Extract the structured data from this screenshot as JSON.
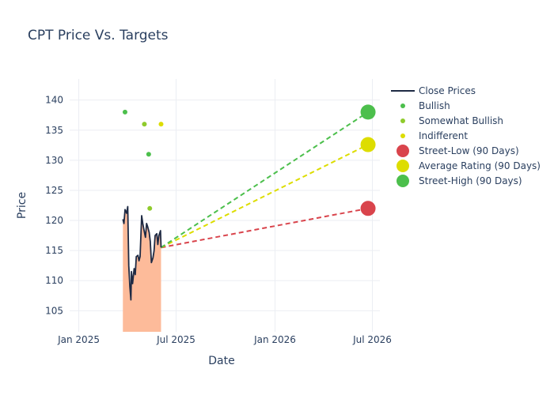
{
  "chart_data": {
    "type": "line",
    "title": "CPT Price Vs. Targets",
    "xlabel": "Date",
    "ylabel": "Price",
    "xlim": [
      "2024-12-15",
      "2026-07-15"
    ],
    "ylim": [
      101.5,
      143.5
    ],
    "x_ticks": [
      {
        "date": "2025-01-01",
        "label": "Jan 2025"
      },
      {
        "date": "2025-07-01",
        "label": "Jul 2025"
      },
      {
        "date": "2026-01-01",
        "label": "Jan 2026"
      },
      {
        "date": "2026-07-01",
        "label": "Jul 2026"
      }
    ],
    "y_ticks": [
      105,
      110,
      115,
      120,
      125,
      130,
      135,
      140
    ],
    "grid": true,
    "legend_position": "top-right",
    "colors": {
      "close": "#1e2a44",
      "fill": "#fdbb9a",
      "bullish": "#4cbf4c",
      "somewhat_bullish": "#8fcb2c",
      "indifferent": "#dddd00",
      "street_low": "#d9444c",
      "average": "#dddd00",
      "street_high": "#4cbf4c",
      "grid": "#ebeef3",
      "text": "#2a3f5f"
    },
    "series": [
      {
        "name": "Close Prices",
        "kind": "close",
        "points": [
          [
            "2025-03-24",
            120.2
          ],
          [
            "2025-03-26",
            119.5
          ],
          [
            "2025-03-28",
            121.8
          ],
          [
            "2025-03-31",
            121.2
          ],
          [
            "2025-04-02",
            122.3
          ],
          [
            "2025-04-04",
            112.5
          ],
          [
            "2025-04-06",
            109.0
          ],
          [
            "2025-04-08",
            106.8
          ],
          [
            "2025-04-09",
            111.5
          ],
          [
            "2025-04-11",
            109.5
          ],
          [
            "2025-04-14",
            112.0
          ],
          [
            "2025-04-16",
            111.0
          ],
          [
            "2025-04-18",
            114.0
          ],
          [
            "2025-04-21",
            114.2
          ],
          [
            "2025-04-23",
            113.3
          ],
          [
            "2025-04-25",
            114.0
          ],
          [
            "2025-04-28",
            120.8
          ],
          [
            "2025-04-30",
            119.5
          ],
          [
            "2025-05-02",
            118.5
          ],
          [
            "2025-05-05",
            117.2
          ],
          [
            "2025-05-07",
            119.5
          ],
          [
            "2025-05-09",
            119.0
          ],
          [
            "2025-05-12",
            118.0
          ],
          [
            "2025-05-14",
            116.5
          ],
          [
            "2025-05-16",
            113.0
          ],
          [
            "2025-05-19",
            113.8
          ],
          [
            "2025-05-21",
            115.0
          ],
          [
            "2025-05-23",
            117.5
          ],
          [
            "2025-05-26",
            117.8
          ],
          [
            "2025-05-28",
            116.0
          ],
          [
            "2025-05-30",
            117.5
          ],
          [
            "2025-06-02",
            118.3
          ],
          [
            "2025-06-03",
            115.5
          ]
        ]
      },
      {
        "name": "Bullish",
        "kind": "scatter",
        "color_key": "bullish",
        "points": [
          [
            "2025-03-28",
            138.0
          ],
          [
            "2025-05-11",
            131.0
          ]
        ]
      },
      {
        "name": "Somewhat Bullish",
        "kind": "scatter",
        "color_key": "somewhat_bullish",
        "points": [
          [
            "2025-05-03",
            136.0
          ],
          [
            "2025-05-13",
            122.0
          ]
        ]
      },
      {
        "name": "Indifferent",
        "kind": "scatter",
        "color_key": "indifferent",
        "points": [
          [
            "2025-06-03",
            136.0
          ]
        ]
      },
      {
        "name": "Street-Low (90 Days)",
        "kind": "target",
        "color_key": "street_low",
        "points": [
          [
            "2025-06-03",
            115.5
          ],
          [
            "2026-06-23",
            122.0
          ]
        ]
      },
      {
        "name": "Average Rating (90 Days)",
        "kind": "target",
        "color_key": "average",
        "points": [
          [
            "2025-06-03",
            115.5
          ],
          [
            "2026-06-23",
            132.6
          ]
        ]
      },
      {
        "name": "Street-High (90 Days)",
        "kind": "target",
        "color_key": "street_high",
        "points": [
          [
            "2025-06-03",
            115.5
          ],
          [
            "2026-06-23",
            138.0
          ]
        ]
      }
    ],
    "legend": [
      {
        "label": "Close Prices",
        "symbol": "line",
        "color_key": "close"
      },
      {
        "label": "Bullish",
        "symbol": "small-dot",
        "color_key": "bullish"
      },
      {
        "label": "Somewhat Bullish",
        "symbol": "small-dot",
        "color_key": "somewhat_bullish"
      },
      {
        "label": "Indifferent",
        "symbol": "small-dot",
        "color_key": "indifferent"
      },
      {
        "label": "Street-Low (90 Days)",
        "symbol": "big-dot",
        "color_key": "street_low"
      },
      {
        "label": "Average Rating (90 Days)",
        "symbol": "big-dot",
        "color_key": "average"
      },
      {
        "label": "Street-High (90 Days)",
        "symbol": "big-dot",
        "color_key": "street_high"
      }
    ]
  }
}
